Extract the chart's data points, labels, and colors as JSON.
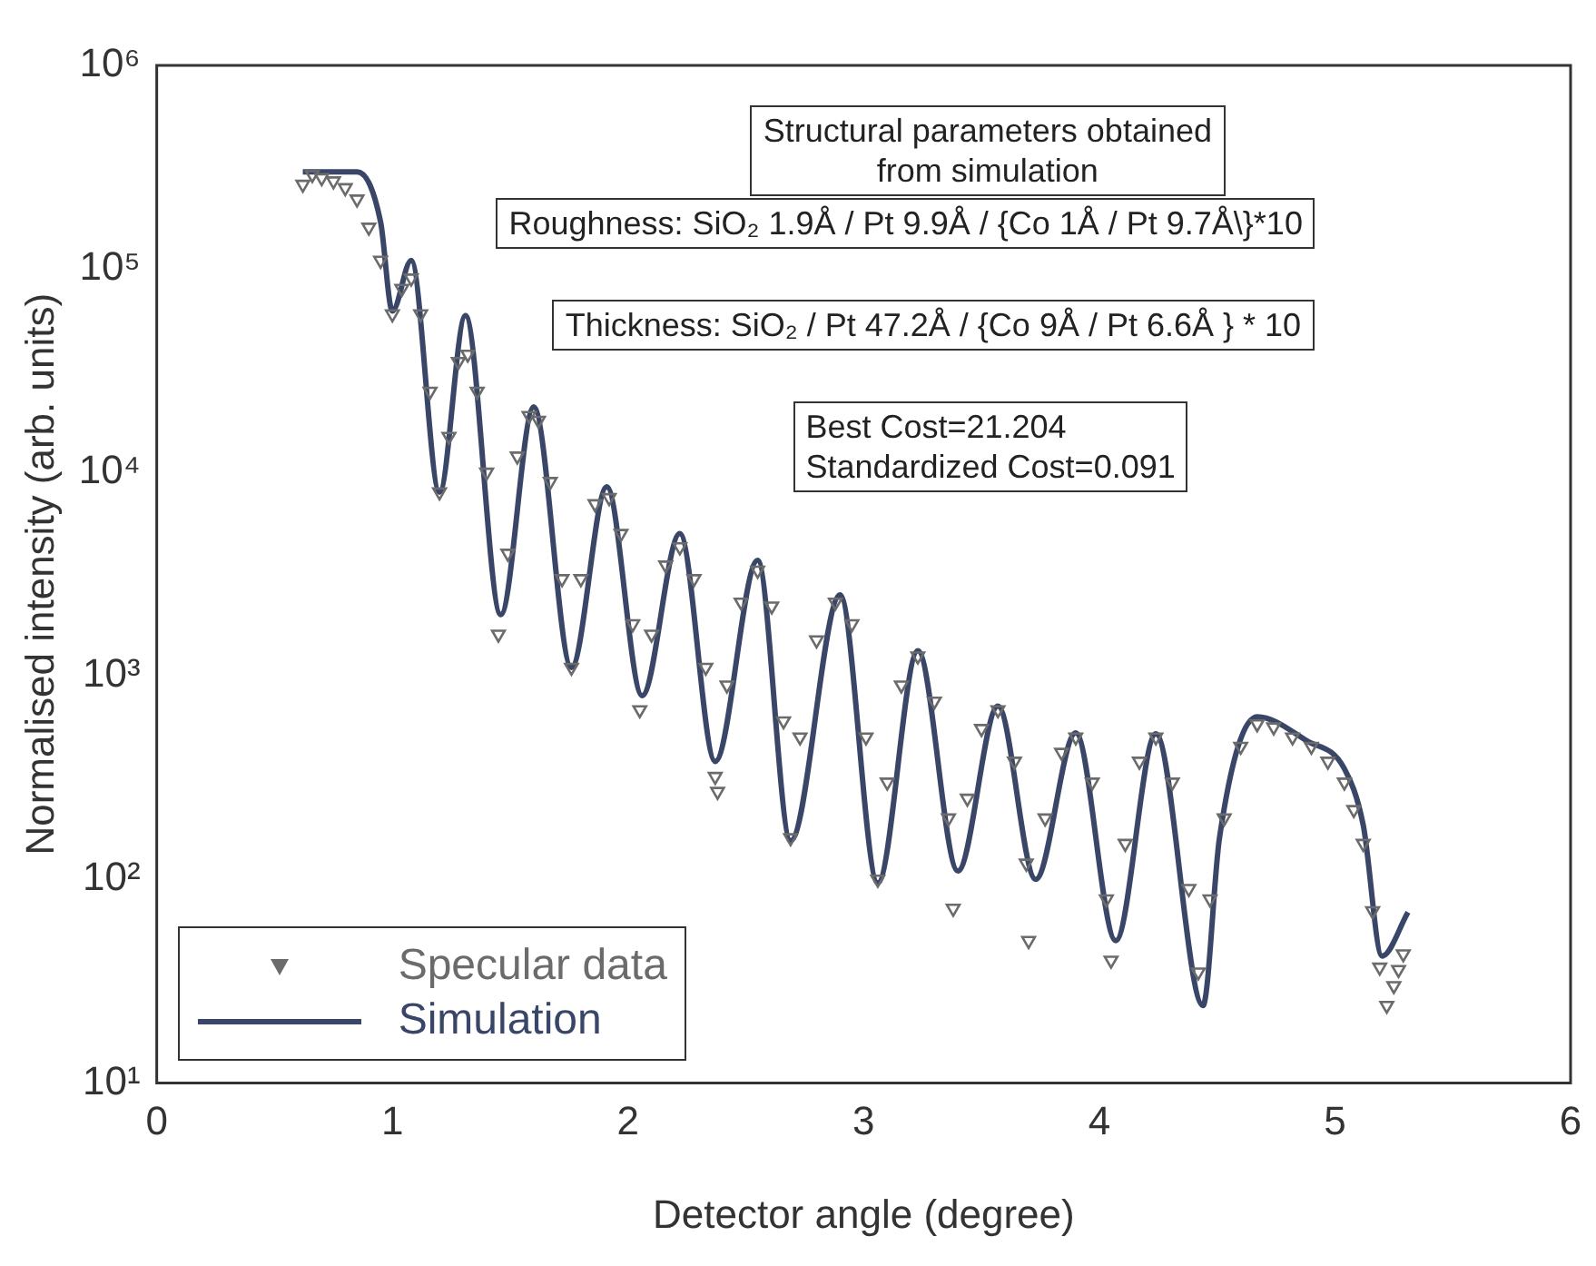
{
  "chart_data": {
    "type": "line",
    "xlabel": "Detector angle (degree)",
    "ylabel": "Normalised intensity (arb. units)",
    "xlim": [
      0,
      6
    ],
    "xticks": [
      0,
      1,
      2,
      3,
      4,
      5,
      6
    ],
    "ylim": [
      10,
      1000000
    ],
    "yticks": [
      {
        "value": 10,
        "label": "10¹"
      },
      {
        "value": 100,
        "label": "10²"
      },
      {
        "value": 1000,
        "label": "10³"
      },
      {
        "value": 10000,
        "label": "10⁴"
      },
      {
        "value": 100000,
        "label": "10⁵"
      },
      {
        "value": 1000000,
        "label": "10⁶"
      }
    ],
    "log": "y",
    "grid": false,
    "legend": "bottom left",
    "annotations": [
      "Structural parameters obtained\nfrom simulation",
      "Roughness: SiO₂ 1.9Å / Pt 9.9Å / {Co 1Å / Pt 9.7Å\\}*10",
      "Thickness: SiO₂ / Pt 47.2Å / {Co 9Å / Pt 6.6Å } * 10",
      "Best Cost=21.204\nStandardized Cost=0.091"
    ],
    "series": [
      {
        "name": "Specular data",
        "type": "scatter",
        "marker": "triangle",
        "color": "#6b6b6b",
        "x": [
          0.62,
          0.66,
          0.7,
          0.75,
          0.8,
          0.85,
          0.9,
          0.95,
          1.0,
          1.04,
          1.08,
          1.12,
          1.16,
          1.2,
          1.24,
          1.28,
          1.32,
          1.36,
          1.4,
          1.45,
          1.49,
          1.53,
          1.58,
          1.62,
          1.67,
          1.72,
          1.76,
          1.8,
          1.86,
          1.92,
          1.97,
          2.02,
          2.05,
          2.1,
          2.16,
          2.22,
          2.28,
          2.33,
          2.37,
          2.38,
          2.42,
          2.48,
          2.55,
          2.61,
          2.66,
          2.69,
          2.73,
          2.8,
          2.88,
          2.95,
          3.01,
          3.06,
          3.1,
          3.16,
          3.23,
          3.3,
          3.36,
          3.38,
          3.44,
          3.5,
          3.57,
          3.64,
          3.69,
          3.7,
          3.77,
          3.84,
          3.9,
          3.97,
          4.03,
          4.05,
          4.11,
          4.17,
          4.24,
          4.31,
          4.38,
          4.42,
          4.47,
          4.53,
          4.6,
          4.67,
          4.74,
          4.82,
          4.9,
          4.97,
          5.04,
          5.08,
          5.12,
          5.16,
          5.19,
          5.22,
          5.25,
          5.27,
          5.29
        ],
        "values": [
          260000,
          290000,
          280000,
          270000,
          250000,
          220000,
          160000,
          110000,
          60000,
          80000,
          90000,
          60000,
          25000,
          8000,
          15000,
          35000,
          38000,
          25000,
          10000,
          1600,
          4000,
          12000,
          19000,
          18000,
          9000,
          3000,
          1100,
          3000,
          7000,
          7500,
          5000,
          1800,
          680,
          1600,
          3500,
          4300,
          3000,
          1100,
          320,
          270,
          900,
          2300,
          3300,
          2200,
          600,
          160,
          500,
          1500,
          2300,
          1800,
          500,
          100,
          300,
          900,
          1250,
          750,
          200,
          72,
          250,
          550,
          680,
          380,
          120,
          50,
          200,
          420,
          500,
          300,
          80,
          40,
          150,
          380,
          500,
          300,
          90,
          35,
          80,
          200,
          450,
          580,
          560,
          500,
          450,
          380,
          300,
          220,
          150,
          70,
          37,
          24,
          30,
          36,
          43
        ]
      },
      {
        "name": "Simulation",
        "type": "line",
        "line_style": "solid",
        "color": "#3a4668",
        "x": [
          0.62,
          0.85,
          0.95,
          1.0,
          1.08,
          1.2,
          1.31,
          1.46,
          1.6,
          1.76,
          1.91,
          2.06,
          2.22,
          2.37,
          2.55,
          2.69,
          2.9,
          3.06,
          3.23,
          3.4,
          3.57,
          3.73,
          3.9,
          4.07,
          4.24,
          4.44,
          4.51,
          4.67,
          4.88,
          5.04,
          5.12,
          5.2,
          5.31
        ],
        "values": [
          300000,
          300000,
          170000,
          62000,
          110000,
          8000,
          59000,
          2000,
          21000,
          1100,
          8500,
          800,
          5000,
          380,
          3700,
          155,
          2500,
          96,
          1330,
          110,
          710,
          100,
          525,
          50,
          520,
          24,
          160,
          630,
          480,
          350,
          185,
          42,
          69
        ]
      }
    ]
  }
}
